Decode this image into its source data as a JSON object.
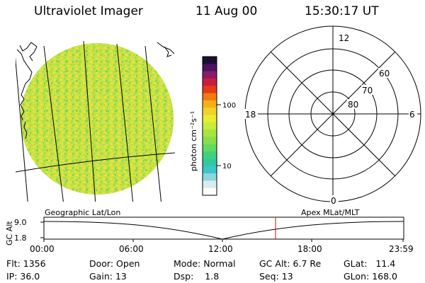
{
  "header": {
    "instrument": "Ultraviolet Imager",
    "date": "11 Aug 00",
    "time": "15:30:17 UT"
  },
  "colorbar": {
    "unit_label": "photon cm⁻²s⁻¹",
    "ticks": [
      "100",
      "10"
    ],
    "colors_top_to_bottom": [
      "#1a0f33",
      "#4a1460",
      "#8a1b6b",
      "#c81e3c",
      "#e83a16",
      "#f27a10",
      "#f5b018",
      "#f2d22a",
      "#e7ee32",
      "#c7ec3c",
      "#a7e444",
      "#86df4a",
      "#62d960",
      "#3fd27e",
      "#32c7a4",
      "#3cc6c8",
      "#8ad7dc",
      "#d9ecef",
      "#ffffff"
    ]
  },
  "polar": {
    "mlt_labels": {
      "top": "12",
      "left": "18",
      "right": "6",
      "bottom": "0"
    },
    "lat_labels": [
      "60",
      "70",
      "80"
    ]
  },
  "timeline": {
    "left_label": "Geographic Lat/Lon",
    "right_label": "Apex MLat/MLT",
    "y_axis_label": "GC Alt",
    "y_ticks": [
      "9.0",
      "1.8"
    ],
    "x_ticks": [
      "00:00",
      "06:00",
      "12:00",
      "18:00",
      "23:59"
    ]
  },
  "info": {
    "flt": {
      "label": "Flt:",
      "value": "1356"
    },
    "ip": {
      "label": "IP:",
      "value": "36.0"
    },
    "door": {
      "label": "Door:",
      "value": "Open"
    },
    "gain": {
      "label": "Gain:",
      "value": "13"
    },
    "mode": {
      "label": "Mode:",
      "value": "Normal"
    },
    "dsp": {
      "label": "Dsp:",
      "value": "1.8"
    },
    "gc_alt": {
      "label": "GC Alt:",
      "value": "6.7 Re"
    },
    "seq": {
      "label": "Seq:",
      "value": "13"
    },
    "glat": {
      "label": "GLat:",
      "value": "11.4"
    },
    "glon": {
      "label": "GLon:",
      "value": "168.0"
    }
  }
}
